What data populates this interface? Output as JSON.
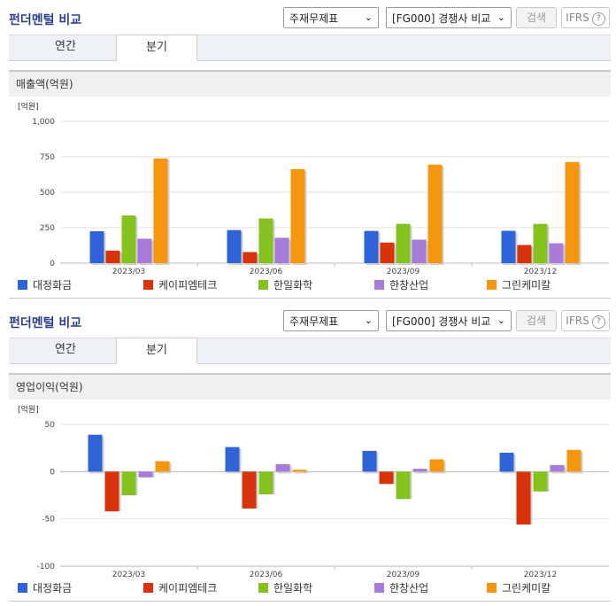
{
  "sections": [
    {
      "title": "펀더멘털 비교",
      "select1": "주재무제표",
      "select2": "[FG000] 경쟁사 비교",
      "search_label": "검색",
      "ifrs_label": "IFRS",
      "help_glyph": "?",
      "tabs": [
        {
          "label": "연간"
        },
        {
          "label": "분기"
        }
      ],
      "active_tab": 1,
      "panel_title": "매출액(억원)",
      "chart_data": {
        "type": "bar",
        "unit_label": "[억원]",
        "categories": [
          "2023/03",
          "2023/06",
          "2023/09",
          "2023/12"
        ],
        "ylim": [
          0,
          1000
        ],
        "yticks": [
          0,
          250,
          500,
          750,
          1000
        ],
        "ytick_labels": [
          "0",
          "250",
          "500",
          "750",
          "1,000"
        ],
        "grid": true,
        "legend_placement": "bottom",
        "series": [
          {
            "name": "대정화금",
            "color": "#2f63d8",
            "values": [
              225,
              233,
              227,
              228
            ]
          },
          {
            "name": "케이피엠테크",
            "color": "#d8330a",
            "values": [
              88,
              78,
              145,
              128
            ]
          },
          {
            "name": "한일화학",
            "color": "#86c21f",
            "values": [
              336,
              315,
              277,
              277
            ]
          },
          {
            "name": "한창산업",
            "color": "#a77bd8",
            "values": [
              172,
              179,
              166,
              140
            ]
          },
          {
            "name": "그린케미칼",
            "color": "#f5960f",
            "values": [
              738,
              663,
              695,
              713
            ]
          }
        ]
      }
    },
    {
      "title": "펀더멘털 비교",
      "select1": "주재무제표",
      "select2": "[FG000] 경쟁사 비교",
      "search_label": "검색",
      "ifrs_label": "IFRS",
      "help_glyph": "?",
      "tabs": [
        {
          "label": "연간"
        },
        {
          "label": "분기"
        }
      ],
      "active_tab": 1,
      "panel_title": "영업이익(억원)",
      "chart_data": {
        "type": "bar",
        "unit_label": "[억원]",
        "categories": [
          "2023/03",
          "2023/06",
          "2023/09",
          "2023/12"
        ],
        "ylim": [
          -100,
          50
        ],
        "yticks": [
          -100,
          -50,
          0,
          50
        ],
        "ytick_labels": [
          "-100",
          "-50",
          "0",
          "50"
        ],
        "grid": true,
        "legend_placement": "bottom",
        "series": [
          {
            "name": "대정화금",
            "color": "#2f63d8",
            "values": [
              39,
              26,
              22,
              20
            ]
          },
          {
            "name": "케이피엠테크",
            "color": "#d8330a",
            "values": [
              -42,
              -39,
              -13,
              -56
            ]
          },
          {
            "name": "한일화학",
            "color": "#86c21f",
            "values": [
              -25,
              -24,
              -29,
              -21
            ]
          },
          {
            "name": "한창산업",
            "color": "#a77bd8",
            "values": [
              -6,
              8,
              3,
              7
            ]
          },
          {
            "name": "그린케미칼",
            "color": "#f5960f",
            "values": [
              11,
              2,
              13,
              23
            ]
          }
        ]
      }
    }
  ]
}
